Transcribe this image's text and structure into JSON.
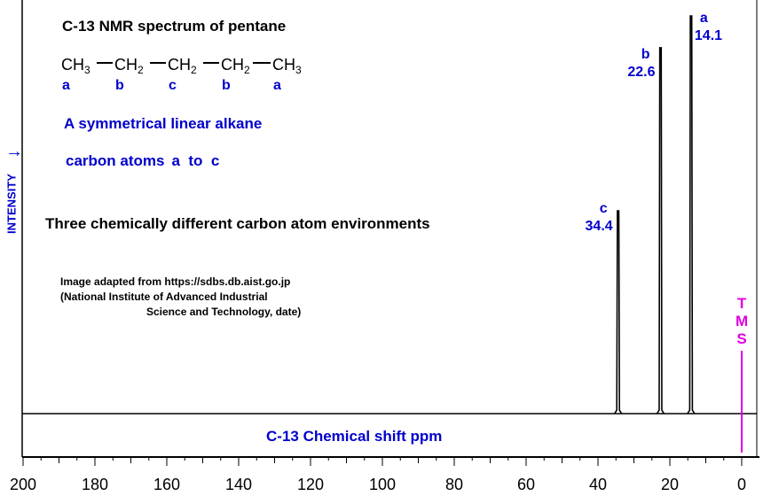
{
  "title": "C-13 NMR spectrum of pentane",
  "formula": {
    "groups": [
      {
        "main": "CH",
        "sub": "3",
        "label": "a"
      },
      {
        "main": "CH",
        "sub": "2",
        "label": "b"
      },
      {
        "main": "CH",
        "sub": "2",
        "label": "c"
      },
      {
        "main": "CH",
        "sub": "2",
        "label": "b"
      },
      {
        "main": "CH",
        "sub": "3",
        "label": "a"
      }
    ]
  },
  "description": {
    "line1": "A symmetrical linear alkane",
    "line2_prefix": "carbon atoms",
    "line2_range": "a  to  c",
    "environments": "Three chemically different carbon atom environments"
  },
  "source": {
    "line1": "Image adapted from https://sdbs.db.aist.go.jp",
    "line2": "(National Institute of Advanced Industrial",
    "line3": "Science and Technology, date)"
  },
  "tms": {
    "letters": [
      "T",
      "M",
      "S"
    ]
  },
  "colors": {
    "blue": "#0000cc",
    "magenta": "#e000e0",
    "black": "#000000"
  },
  "chart_data": {
    "type": "line",
    "xlabel": "C-13 Chemical shift ppm",
    "ylabel": "INTENSITY",
    "xlim": [
      200,
      0
    ],
    "xticks": [
      200,
      180,
      160,
      140,
      120,
      100,
      80,
      60,
      40,
      20,
      0
    ],
    "peaks": [
      {
        "label": "a",
        "shift": "14.1",
        "x": 14.1,
        "intensity": 1.0
      },
      {
        "label": "b",
        "shift": "22.6",
        "x": 22.6,
        "intensity": 0.92
      },
      {
        "label": "c",
        "shift": "34.4",
        "x": 34.4,
        "intensity": 0.51
      }
    ],
    "reference": {
      "label": "TMS",
      "x": 0
    }
  }
}
